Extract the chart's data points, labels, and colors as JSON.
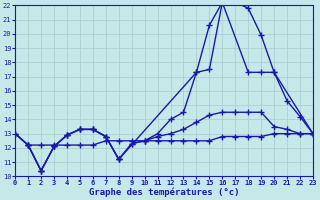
{
  "xlabel": "Graphe des températures (°c)",
  "bg_color": "#c5e8e8",
  "line_color": "#1a1aaa",
  "grid_color": "#a8cccc",
  "xlim": [
    0,
    23
  ],
  "ylim": [
    10,
    22
  ],
  "yticks": [
    10,
    11,
    12,
    13,
    14,
    15,
    16,
    17,
    18,
    19,
    20,
    21,
    22
  ],
  "xticks": [
    0,
    1,
    2,
    3,
    4,
    5,
    6,
    7,
    8,
    9,
    10,
    11,
    12,
    13,
    14,
    15,
    16,
    17,
    18,
    19,
    20,
    21,
    22,
    23
  ],
  "series": [
    {
      "x": [
        0,
        1,
        2,
        3,
        4,
        5,
        6,
        7,
        8,
        9,
        10,
        11,
        12,
        13,
        14,
        15,
        16,
        17,
        18,
        19,
        20,
        21,
        22,
        23
      ],
      "y": [
        13.0,
        12.2,
        12.2,
        12.2,
        12.2,
        12.2,
        12.2,
        12.5,
        12.5,
        12.5,
        12.5,
        12.5,
        12.5,
        12.5,
        12.5,
        12.5,
        12.8,
        12.8,
        12.8,
        12.8,
        13.0,
        13.0,
        13.0,
        13.0
      ]
    },
    {
      "x": [
        0,
        1,
        2,
        3,
        4,
        5,
        6,
        7,
        8,
        9,
        10,
        11,
        12,
        13,
        14,
        15,
        16,
        17,
        18,
        19,
        20,
        21,
        22,
        23
      ],
      "y": [
        13.0,
        12.2,
        10.4,
        12.1,
        12.9,
        13.3,
        13.3,
        12.8,
        11.2,
        12.3,
        12.5,
        12.8,
        13.0,
        13.3,
        13.8,
        14.3,
        14.5,
        14.5,
        14.5,
        14.5,
        13.5,
        13.3,
        13.0,
        13.0
      ]
    },
    {
      "x": [
        0,
        1,
        2,
        3,
        4,
        5,
        6,
        7,
        8,
        9,
        10,
        11,
        12,
        13,
        14,
        15,
        16,
        17,
        18,
        19,
        20,
        21,
        22,
        23
      ],
      "y": [
        13.0,
        12.2,
        10.4,
        12.1,
        12.9,
        13.3,
        13.3,
        12.8,
        11.2,
        12.3,
        12.5,
        13.0,
        14.0,
        14.5,
        17.3,
        20.6,
        22.2,
        22.2,
        21.8,
        19.9,
        17.3,
        15.3,
        14.2,
        13.0
      ]
    },
    {
      "x": [
        1,
        2,
        3,
        4,
        5,
        6,
        7,
        8,
        14,
        15,
        16,
        18,
        19,
        20,
        23
      ],
      "y": [
        12.2,
        10.4,
        12.1,
        12.9,
        13.3,
        13.3,
        12.8,
        11.2,
        17.3,
        17.5,
        22.2,
        17.3,
        17.3,
        17.3,
        13.0
      ]
    }
  ]
}
